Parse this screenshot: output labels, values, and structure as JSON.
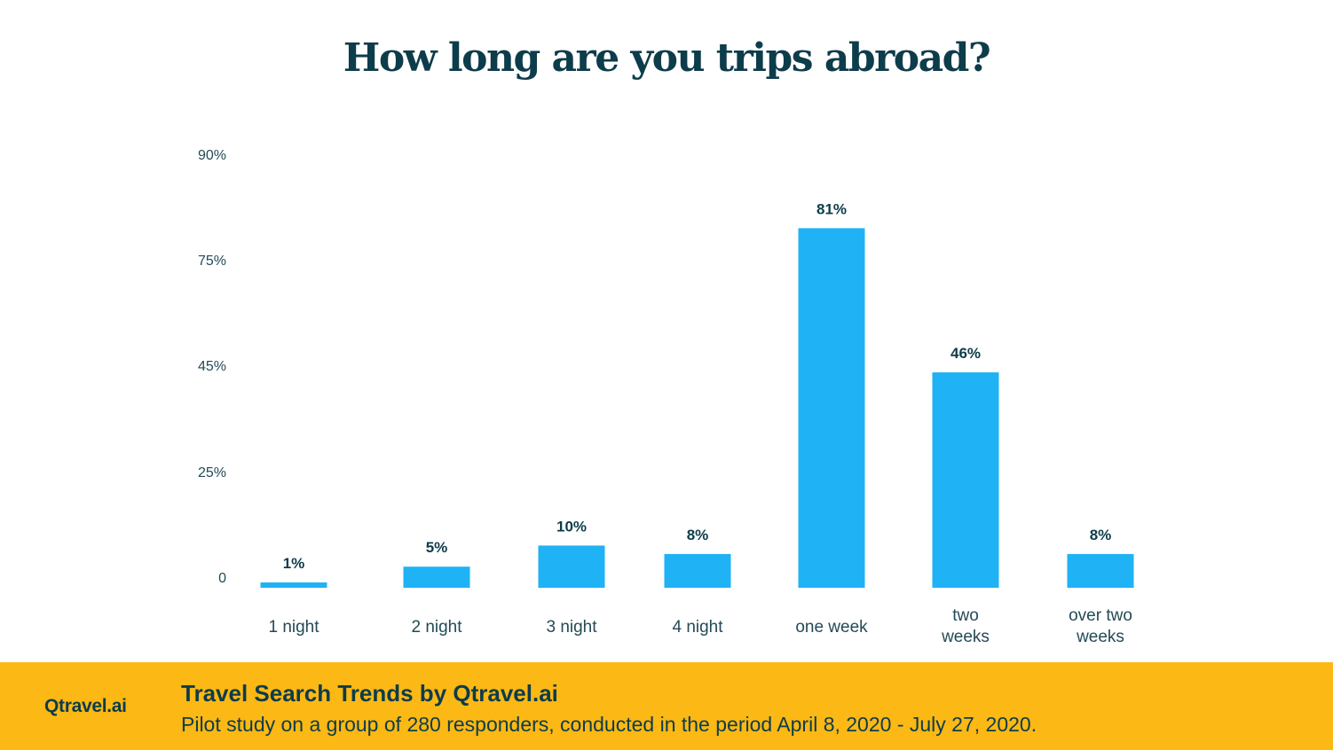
{
  "chart_data": {
    "type": "bar",
    "title": "How long are you trips abroad?",
    "xlabel": "",
    "ylabel": "",
    "categories": [
      "1 night",
      "2 night",
      "3 night",
      "4 night",
      "one week",
      "two weeks",
      "over two weeks"
    ],
    "values": [
      1,
      5,
      10,
      8,
      81,
      46,
      8
    ],
    "data_labels": [
      "1%",
      "5%",
      "10%",
      "8%",
      "81%",
      "46%",
      "8%"
    ],
    "y_tick_labels": [
      "0",
      "25%",
      "45%",
      "75%",
      "90%"
    ],
    "ylim": [
      0,
      90
    ],
    "grid": false,
    "legend": "none",
    "bar_color": "#1fb2f5",
    "label_color": "#0d3c4b",
    "tick_color": "#244a57"
  },
  "footer": {
    "brand": "Qtravel.ai",
    "title": "Travel Search Trends by Qtravel.ai",
    "subtitle": "Pilot study on a group of 280 responders, conducted in the period April 8, 2020 - July 27, 2020.",
    "background": "#fcb814"
  }
}
